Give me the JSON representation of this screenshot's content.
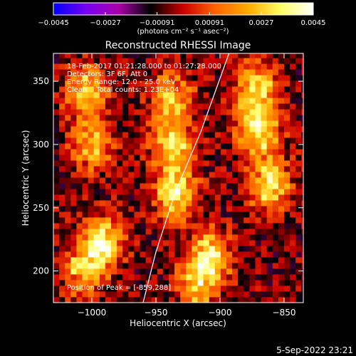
{
  "chart_data": {
    "type": "heatmap",
    "title": "Reconstructed RHESSI Image",
    "xlabel": "Heliocentric X (arcsec)",
    "ylabel": "Heliocentric Y (arcsec)",
    "xlim": [
      -1030,
      -835
    ],
    "ylim": [
      175,
      372
    ],
    "x_ticks": [
      {
        "value": -1000,
        "label": "−1000"
      },
      {
        "value": -950,
        "label": "−950"
      },
      {
        "value": -900,
        "label": "−900"
      },
      {
        "value": -850,
        "label": "−850"
      }
    ],
    "y_ticks": [
      {
        "value": 200,
        "label": "200"
      },
      {
        "value": 250,
        "label": "250"
      },
      {
        "value": 300,
        "label": "300"
      },
      {
        "value": 350,
        "label": "350"
      }
    ],
    "colorbar": {
      "range": [
        -0.0045,
        0.0045
      ],
      "ticks": [
        {
          "value": -0.0045,
          "label": "−0.0045"
        },
        {
          "value": -0.0027,
          "label": "−0.0027"
        },
        {
          "value": -0.00091,
          "label": "−0.00091"
        },
        {
          "value": 0.00091,
          "label": "0.00091"
        },
        {
          "value": 0.0027,
          "label": "0.0027"
        },
        {
          "value": 0.0045,
          "label": "0.0045"
        }
      ],
      "unit_label": "(photons cm⁻² s⁻¹ asec⁻²)",
      "colors": [
        "#0000ff",
        "#7700ee",
        "#aa00aa",
        "#000000",
        "#cc0000",
        "#ff6600",
        "#ffaa00",
        "#ffff66",
        "#ffffff"
      ]
    },
    "info_lines": [
      "18-Feb-2017 01:21:28.000 to 01:27:28.000",
      "Detectors: 3F 6F, Att 0",
      "Energy Range: 12.0 - 25.0 keV",
      "Clean    Total counts: 1.23E+04"
    ],
    "peak_label": "Position of Peak = [-859,288]",
    "peak": {
      "x": -859,
      "y": 288
    },
    "limb_curve": [
      [
        -960,
        175
      ],
      [
        -950,
        215
      ],
      [
        -935,
        262
      ],
      [
        -915,
        310
      ],
      [
        -893,
        372
      ]
    ],
    "grid": false,
    "blobs": [
      {
        "x": -870,
        "y": 312,
        "amp": 0.0045
      },
      {
        "x": -862,
        "y": 268,
        "amp": 0.004
      },
      {
        "x": -872,
        "y": 345,
        "amp": 0.0035
      },
      {
        "x": -935,
        "y": 262,
        "amp": 0.0043
      },
      {
        "x": -937,
        "y": 300,
        "amp": 0.0037
      },
      {
        "x": -938,
        "y": 338,
        "amp": 0.003
      },
      {
        "x": -1005,
        "y": 340,
        "amp": 0.0036
      },
      {
        "x": -1000,
        "y": 300,
        "amp": 0.0031
      },
      {
        "x": -992,
        "y": 222,
        "amp": 0.0041
      },
      {
        "x": -1007,
        "y": 200,
        "amp": 0.003
      },
      {
        "x": -908,
        "y": 212,
        "amp": 0.0042
      },
      {
        "x": -918,
        "y": 188,
        "amp": 0.0029
      }
    ],
    "noise": {
      "min": -0.0016,
      "max": 0.0004
    }
  },
  "footer": {
    "timestamp": "5-Sep-2022 23:21"
  }
}
